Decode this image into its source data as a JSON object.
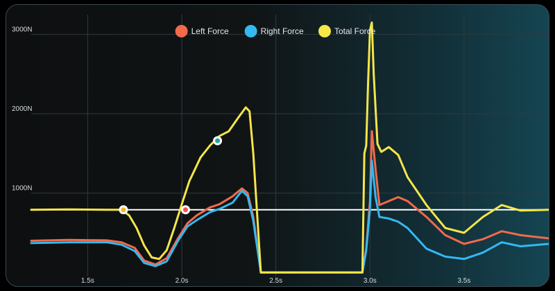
{
  "chart_data": {
    "type": "line",
    "x_unit": "s",
    "y_unit": "N",
    "xlim": [
      1.2,
      3.95
    ],
    "ylim": [
      -50,
      3250
    ],
    "x_ticks": [
      1.5,
      2.0,
      2.5,
      3.0,
      3.5
    ],
    "x_tick_labels": [
      "1.5s",
      "2.0s",
      "2.5s",
      "3.0s",
      "3.5s"
    ],
    "y_ticks": [
      1000,
      2000,
      3000
    ],
    "y_tick_labels": [
      "1000N",
      "2000N",
      "3000N"
    ],
    "grid": true,
    "legend_position": "top-center",
    "reference_line": {
      "value": 790,
      "color": "#ffffff"
    },
    "markers": [
      {
        "x": 1.69,
        "y": 790,
        "color": "#f0b429"
      },
      {
        "x": 2.02,
        "y": 790,
        "color": "#ef5350"
      },
      {
        "x": 2.19,
        "y": 1660,
        "color": "#26a69a"
      }
    ],
    "series": [
      {
        "name": "Left Force",
        "color": "#f26a4b",
        "x": [
          1.2,
          1.4,
          1.6,
          1.68,
          1.75,
          1.8,
          1.86,
          1.92,
          1.98,
          2.03,
          2.08,
          2.15,
          2.2,
          2.27,
          2.32,
          2.35,
          2.38,
          2.42,
          2.5,
          2.7,
          2.9,
          2.96,
          2.98,
          3.0,
          3.01,
          3.03,
          3.05,
          3.1,
          3.15,
          3.2,
          3.3,
          3.4,
          3.5,
          3.6,
          3.7,
          3.8,
          3.95
        ],
        "y": [
          400,
          410,
          405,
          380,
          310,
          150,
          100,
          180,
          430,
          620,
          720,
          820,
          860,
          960,
          1060,
          1000,
          700,
          0,
          0,
          0,
          0,
          0,
          300,
          900,
          1780,
          1300,
          850,
          900,
          950,
          900,
          700,
          470,
          360,
          420,
          520,
          470,
          430
        ]
      },
      {
        "name": "Right Force",
        "color": "#35b8f0",
        "x": [
          1.2,
          1.4,
          1.6,
          1.68,
          1.75,
          1.8,
          1.86,
          1.92,
          1.98,
          2.03,
          2.08,
          2.15,
          2.2,
          2.27,
          2.32,
          2.35,
          2.38,
          2.42,
          2.5,
          2.7,
          2.9,
          2.96,
          2.98,
          3.0,
          3.01,
          3.03,
          3.05,
          3.1,
          3.15,
          3.2,
          3.3,
          3.4,
          3.5,
          3.6,
          3.7,
          3.8,
          3.95
        ],
        "y": [
          370,
          380,
          380,
          350,
          270,
          120,
          80,
          140,
          400,
          580,
          660,
          760,
          800,
          880,
          1030,
          960,
          650,
          0,
          0,
          0,
          0,
          0,
          280,
          800,
          1410,
          950,
          700,
          680,
          640,
          560,
          300,
          200,
          170,
          250,
          380,
          330,
          360
        ]
      },
      {
        "name": "Total Force",
        "color": "#f5e64a",
        "x": [
          1.2,
          1.4,
          1.6,
          1.68,
          1.72,
          1.76,
          1.8,
          1.84,
          1.88,
          1.92,
          1.96,
          2.0,
          2.04,
          2.1,
          2.15,
          2.2,
          2.25,
          2.3,
          2.34,
          2.36,
          2.38,
          2.42,
          2.5,
          2.7,
          2.9,
          2.96,
          2.97,
          2.98,
          2.99,
          3.0,
          3.01,
          3.02,
          3.04,
          3.06,
          3.1,
          3.15,
          3.2,
          3.3,
          3.4,
          3.5,
          3.6,
          3.7,
          3.8,
          3.95
        ],
        "y": [
          790,
          795,
          790,
          790,
          720,
          560,
          340,
          190,
          170,
          280,
          560,
          860,
          1150,
          1450,
          1600,
          1720,
          1780,
          1950,
          2080,
          2030,
          1500,
          0,
          0,
          0,
          0,
          0,
          1500,
          1600,
          2400,
          3050,
          3150,
          2500,
          1620,
          1520,
          1580,
          1480,
          1200,
          850,
          560,
          500,
          700,
          850,
          780,
          790
        ]
      }
    ]
  }
}
